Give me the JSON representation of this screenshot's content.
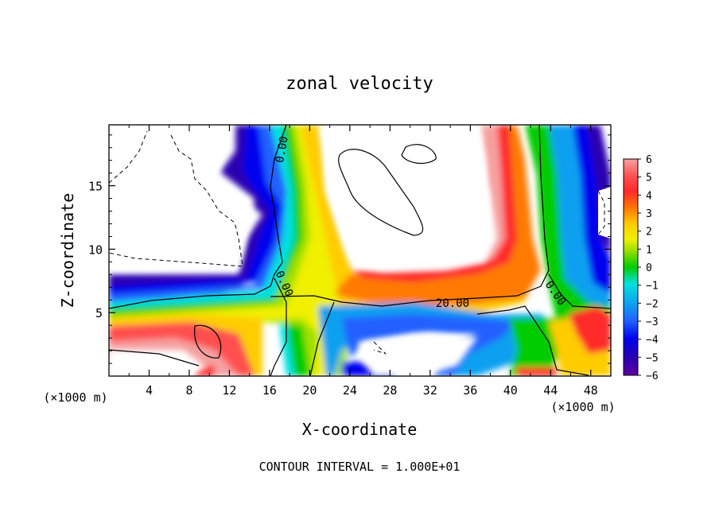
{
  "chart_data": {
    "type": "heatmap",
    "title": "zonal velocity",
    "xlabel": "X-coordinate",
    "ylabel": "Z-coordinate",
    "x_unit": "(×1000 m)",
    "x_unit_right": "(×1000 m)",
    "xlim": [
      0,
      50
    ],
    "ylim": [
      0,
      19.8
    ],
    "x_ticks": [
      "4",
      "8",
      "12",
      "16",
      "20",
      "24",
      "28",
      "32",
      "36",
      "40",
      "44",
      "48"
    ],
    "y_ticks": [
      "5",
      "10",
      "15"
    ],
    "colorbar": {
      "range": [
        -6,
        6
      ],
      "tick_labels": [
        "6",
        "5",
        "4",
        "3",
        "2",
        "1",
        "0",
        "−1",
        "−2",
        "−3",
        "−4",
        "−5",
        "−6"
      ],
      "stops": [
        "#f5a0a0",
        "#ff5050",
        "#ff2a2a",
        "#ff7a00",
        "#ffcc00",
        "#f0f000",
        "#a0e000",
        "#00cc00",
        "#00d87a",
        "#00e0e0",
        "#10a0f0",
        "#2060ff",
        "#0000ee",
        "#2a00b0",
        "#6000a0"
      ]
    },
    "contour_labels": [
      "0.00",
      "0.00",
      "20.00",
      "0.00"
    ],
    "footer": "CONTOUR INTERVAL = 1.000E+01"
  }
}
